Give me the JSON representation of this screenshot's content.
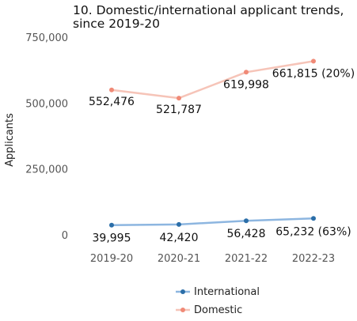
{
  "chart_data": {
    "type": "line",
    "title_lines": [
      "10. Domestic/international applicant trends,",
      "since 2019-20"
    ],
    "xlabel": "",
    "ylabel": "Applicants",
    "categories": [
      "2019-20",
      "2020-21",
      "2021-22",
      "2022-23"
    ],
    "ylim": [
      0,
      750000
    ],
    "yticks": [
      "750,000",
      "500,000",
      "250,000",
      "0"
    ],
    "ytick_values": [
      750000,
      500000,
      250000,
      0
    ],
    "grid": false,
    "legend_position": "bottom",
    "series": [
      {
        "name": "International",
        "values": [
          39995,
          42420,
          56428,
          65232
        ],
        "labels": [
          "39,995",
          "42,420",
          "56,428",
          "65,232 (63%)"
        ],
        "line_color": "#8db6e0",
        "marker_color": "#2b6ea8"
      },
      {
        "name": "Domestic",
        "values": [
          552476,
          521787,
          619998,
          661815
        ],
        "labels": [
          "552,476",
          "521,787",
          "619,998",
          "661,815 (20%)"
        ],
        "line_color": "#f6c4b8",
        "marker_color": "#f08a77"
      }
    ]
  }
}
